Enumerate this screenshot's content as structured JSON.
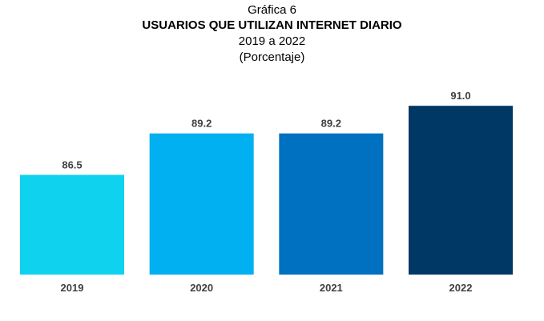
{
  "chart_data": {
    "type": "bar",
    "supertitle": "Gráfica 6",
    "title": "USUARIOS QUE UTILIZAN INTERNET DIARIO",
    "subtitle": "2019 a 2022",
    "unit_note": "(Porcentaje)",
    "categories": [
      "2019",
      "2020",
      "2021",
      "2022"
    ],
    "values": [
      86.5,
      89.2,
      89.2,
      91.0
    ],
    "value_labels": [
      "86.5",
      "89.2",
      "89.2",
      "91.0"
    ],
    "bar_colors": [
      "#0ED2EE",
      "#00B0F0",
      "#0070C0",
      "#003865"
    ],
    "xlabel": "",
    "ylabel": "",
    "ylim": [
      80,
      92
    ],
    "grid": false,
    "legend": "none"
  }
}
